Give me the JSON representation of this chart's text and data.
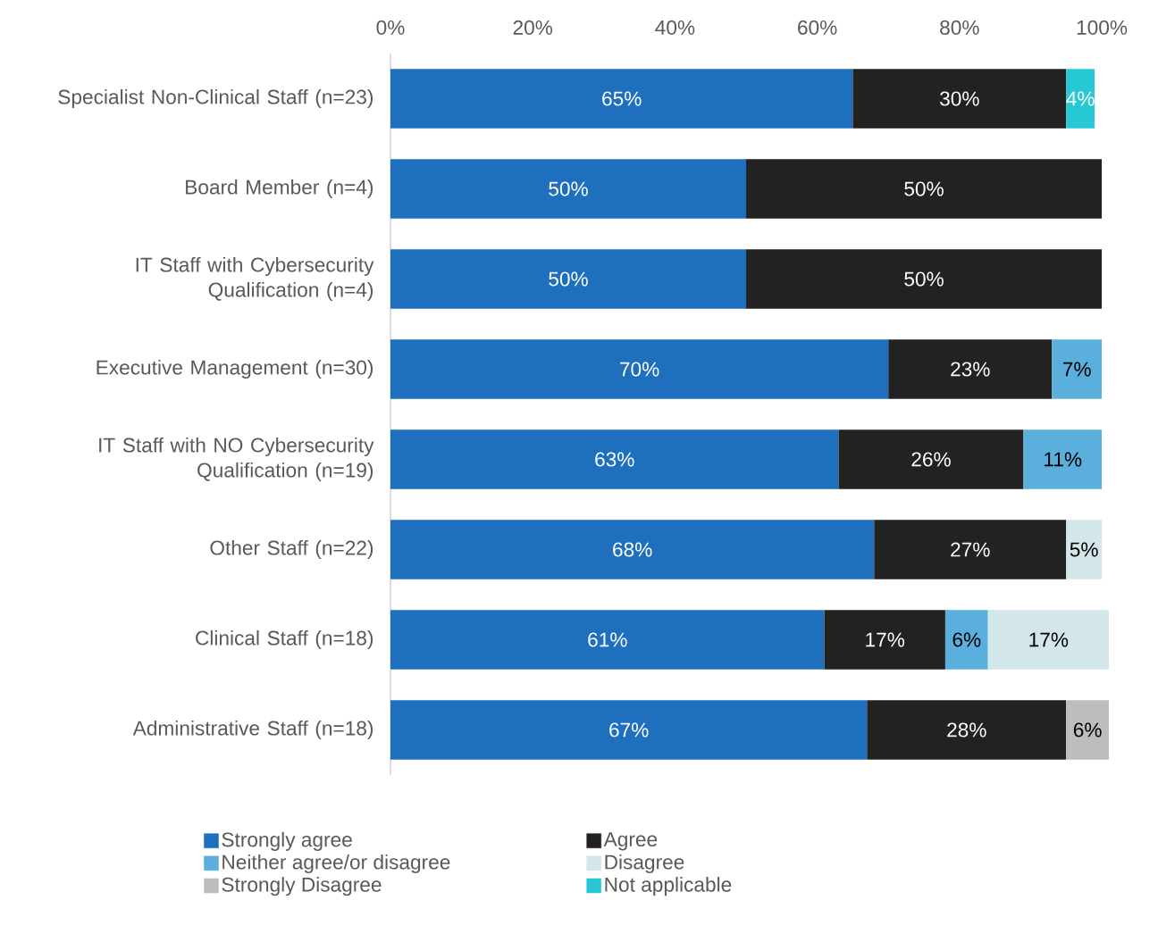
{
  "chart_data": {
    "type": "bar",
    "orientation": "horizontal",
    "stacked": true,
    "categories": [
      "Specialist Non-Clinical Staff (n=23)",
      "Board Member (n=4)",
      "IT Staff with Cybersecurity Qualification (n=4)",
      "Executive Management (n=30)",
      "IT Staff with NO Cybersecurity Qualification (n=19)",
      "Other Staff (n=22)",
      "Clinical Staff (n=18)",
      "Administrative Staff (n=18)"
    ],
    "series": [
      {
        "name": "Strongly agree",
        "color": "#1f6fbf",
        "values": [
          65,
          50,
          50,
          70,
          63,
          68,
          61,
          67
        ],
        "value_labels": [
          "65%",
          "50%",
          "50%",
          "70%",
          "63%",
          "68%",
          "61%",
          "67%"
        ]
      },
      {
        "name": "Agree",
        "color": "#222222",
        "values": [
          30,
          50,
          50,
          23,
          26,
          27,
          17,
          28
        ],
        "value_labels": [
          "30%",
          "50%",
          "50%",
          "23%",
          "26%",
          "27%",
          "17%",
          "28%"
        ]
      },
      {
        "name": "Neither agree/or disagree",
        "color": "#5aafdc",
        "values": [
          null,
          null,
          null,
          7,
          11,
          null,
          6,
          null
        ],
        "value_labels": [
          null,
          null,
          null,
          "7%",
          "11%",
          null,
          "6%",
          null
        ]
      },
      {
        "name": "Disagree",
        "color": "#d3e6ea",
        "values": [
          null,
          null,
          null,
          null,
          null,
          5,
          17,
          null
        ],
        "value_labels": [
          null,
          null,
          null,
          null,
          null,
          "5%",
          "17%",
          null
        ]
      },
      {
        "name": "Strongly Disagree",
        "color": "#bdbdbd",
        "values": [
          null,
          null,
          null,
          null,
          null,
          null,
          null,
          6
        ],
        "value_labels": [
          null,
          null,
          null,
          null,
          null,
          null,
          null,
          "6%"
        ]
      },
      {
        "name": "Not applicable",
        "color": "#26c9d3",
        "values": [
          4,
          null,
          null,
          null,
          null,
          null,
          null,
          null
        ],
        "value_labels": [
          "4%",
          null,
          null,
          null,
          null,
          null,
          null,
          null
        ]
      }
    ],
    "xlim": [
      0,
      101
    ],
    "xticks": [
      {
        "value": 0,
        "label": "0%"
      },
      {
        "value": 20,
        "label": "20%"
      },
      {
        "value": 40,
        "label": "40%"
      },
      {
        "value": 60,
        "label": "60%"
      },
      {
        "value": 80,
        "label": "80%"
      },
      {
        "value": 100,
        "label": "100%"
      }
    ],
    "grid": false,
    "legend": "bottom"
  }
}
